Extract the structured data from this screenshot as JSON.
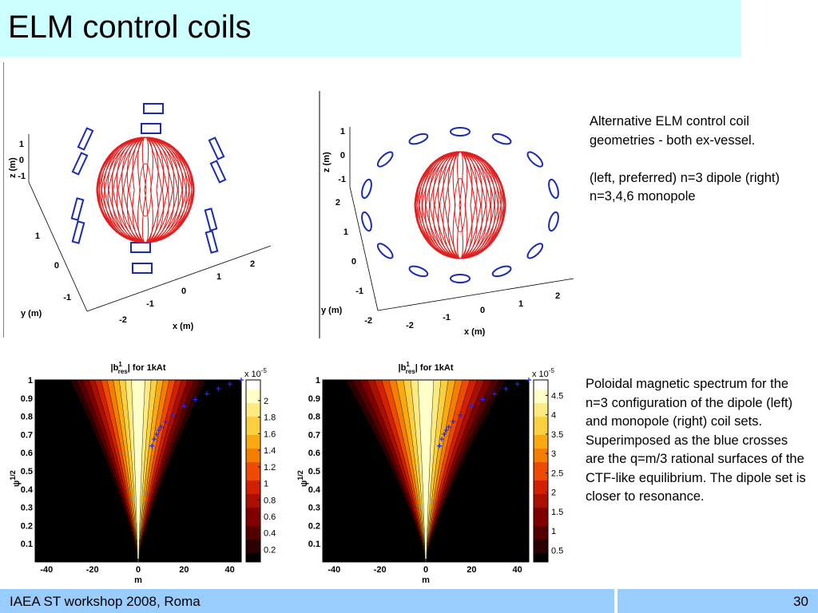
{
  "slide": {
    "title": "ELM control coils",
    "footer_left": "IAEA ST workshop 2008, Roma",
    "page_number": "30"
  },
  "caption_top": {
    "line1": "Alternative ELM control coil geometries - both ex-vessel.",
    "line2": "(left, preferred) n=3 dipole (right) n=3,4,6 monopole"
  },
  "caption_bottom": {
    "text": "Poloidal magnetic spectrum for the n=3 configuration of the dipole (left) and monopole (right) coil sets. Superimposed as the blue crosses are the q=m/3 rational surfaces of the CTF-like equilibrium.  The dipole set is closer to resonance."
  },
  "colors": {
    "title_bg": "#ccffff",
    "footer_bg": "#99ccff",
    "coil_color": "#1a2bb0",
    "plasma_color": "#e02020"
  },
  "fig3d_left": {
    "z_label": "z (m)",
    "y_label": "y (m)",
    "x_label": "x (m)",
    "z_ticks": [
      "1",
      "0",
      "-1"
    ],
    "y_ticks": [
      "1",
      "0",
      "-1",
      "-2"
    ],
    "x_ticks": [
      "2",
      "1",
      "0",
      "-1",
      "-2"
    ]
  },
  "fig3d_right": {
    "z_label": "z (m)",
    "y_label": "y (m)",
    "x_label": "x (m)",
    "z_ticks": [
      "1",
      "0",
      "-1"
    ],
    "y_ticks": [
      "2",
      "1",
      "0",
      "-1",
      "-2"
    ],
    "x_ticks": [
      "2",
      "1",
      "0",
      "-1",
      "-2"
    ]
  },
  "chart_data": [
    {
      "type": "heatmap",
      "title": "|b",
      "title_sup": "1",
      "title_sub": "res",
      "title_rest": "| for 1kAt",
      "xlabel": "m",
      "ylabel": "ψ",
      "ylabel_sup": "1/2",
      "x_ticks": [
        -40,
        -20,
        0,
        20,
        40
      ],
      "y_ticks": [
        0.1,
        0.2,
        0.3,
        0.4,
        0.5,
        0.6,
        0.7,
        0.8,
        0.9,
        1
      ],
      "xlim": [
        -45,
        45
      ],
      "ylim": [
        0,
        1
      ],
      "colorbar_exponent": "x 10",
      "colorbar_exponent_sup": "-5",
      "colorbar_ticks": [
        0.2,
        0.4,
        0.6,
        0.8,
        1,
        1.2,
        1.4,
        1.6,
        1.8,
        2
      ],
      "colorbar_range": [
        0.05,
        2.25
      ],
      "rational_surfaces_m": [
        6,
        7,
        8,
        9,
        10,
        12,
        15,
        20,
        25,
        30,
        35,
        40,
        45
      ]
    },
    {
      "type": "heatmap",
      "title": "|b",
      "title_sup": "1",
      "title_sub": "res",
      "title_rest": "| for 1kAt",
      "xlabel": "m",
      "ylabel": "ψ",
      "ylabel_sup": "1/2",
      "x_ticks": [
        -40,
        -20,
        0,
        20,
        40
      ],
      "y_ticks": [
        0.1,
        0.2,
        0.3,
        0.4,
        0.5,
        0.6,
        0.7,
        0.8,
        0.9,
        1
      ],
      "xlim": [
        -45,
        45
      ],
      "ylim": [
        0,
        1
      ],
      "colorbar_exponent": "x 10",
      "colorbar_exponent_sup": "-5",
      "colorbar_ticks": [
        0.5,
        1,
        1.5,
        2,
        2.5,
        3,
        3.5,
        4,
        4.5
      ],
      "colorbar_range": [
        0.2,
        4.9
      ],
      "rational_surfaces_m": [
        6,
        7,
        8,
        9,
        10,
        12,
        15,
        20,
        25,
        30,
        35,
        40,
        45
      ]
    }
  ]
}
